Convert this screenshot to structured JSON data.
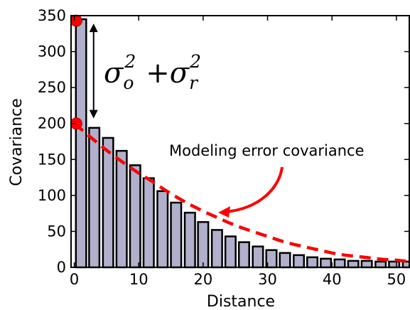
{
  "chart_data": {
    "type": "bar",
    "xlabel": "Distance",
    "ylabel": "Covariance",
    "xlim": [
      -0.5,
      52
    ],
    "ylim": [
      0,
      350
    ],
    "xticks": [
      0,
      10,
      20,
      30,
      40,
      50
    ],
    "yticks": [
      0,
      50,
      100,
      150,
      200,
      250,
      300,
      350
    ],
    "grid": false,
    "bar_color": "#b0b0cc",
    "bar_edge_color": "#000000",
    "bars": {
      "x": [
        1.05,
        3.1,
        5.25,
        7.35,
        9.45,
        11.55,
        13.7,
        15.8,
        17.95,
        20.0,
        22.15,
        24.25,
        26.35,
        28.5,
        30.6,
        32.7,
        34.85,
        36.95,
        39.05,
        41.2,
        43.3,
        45.4,
        47.55,
        49.65,
        51.8
      ],
      "values": [
        345,
        194,
        180,
        162,
        142,
        124,
        106,
        90,
        76,
        63,
        52,
        43,
        35,
        29,
        24,
        20,
        17,
        14,
        12,
        11,
        9,
        9,
        8,
        8,
        8
      ]
    },
    "model_curve": {
      "color": "#ff0000",
      "style": "dashed",
      "x": [
        0,
        2,
        4,
        6,
        8,
        10,
        12,
        14,
        16,
        18,
        20,
        22,
        24,
        26,
        28,
        30,
        32,
        34,
        36,
        38,
        40,
        42,
        44,
        46,
        48,
        50,
        52
      ],
      "y": [
        200,
        185,
        170,
        156,
        143,
        131,
        120,
        108,
        97,
        87,
        78,
        70,
        62,
        55,
        49,
        43,
        37,
        32,
        28,
        24,
        20,
        17,
        15,
        13,
        11,
        10,
        8
      ]
    },
    "points": [
      {
        "x": 0.3,
        "y": 343,
        "color": "#ff0000"
      },
      {
        "x": 0.3,
        "y": 200,
        "color": "#ff0000"
      }
    ],
    "double_arrow": {
      "x": 3.0,
      "y_top": 343,
      "y_bottom": 205
    },
    "annotations": {
      "sigma_formula": {
        "sigma1": "σ",
        "sub1": "o",
        "sup1": "2",
        "plus": "+",
        "sigma2": "σ",
        "sub2": "r",
        "sup2": "2"
      },
      "modeling_label": "Modeling error covariance"
    }
  }
}
